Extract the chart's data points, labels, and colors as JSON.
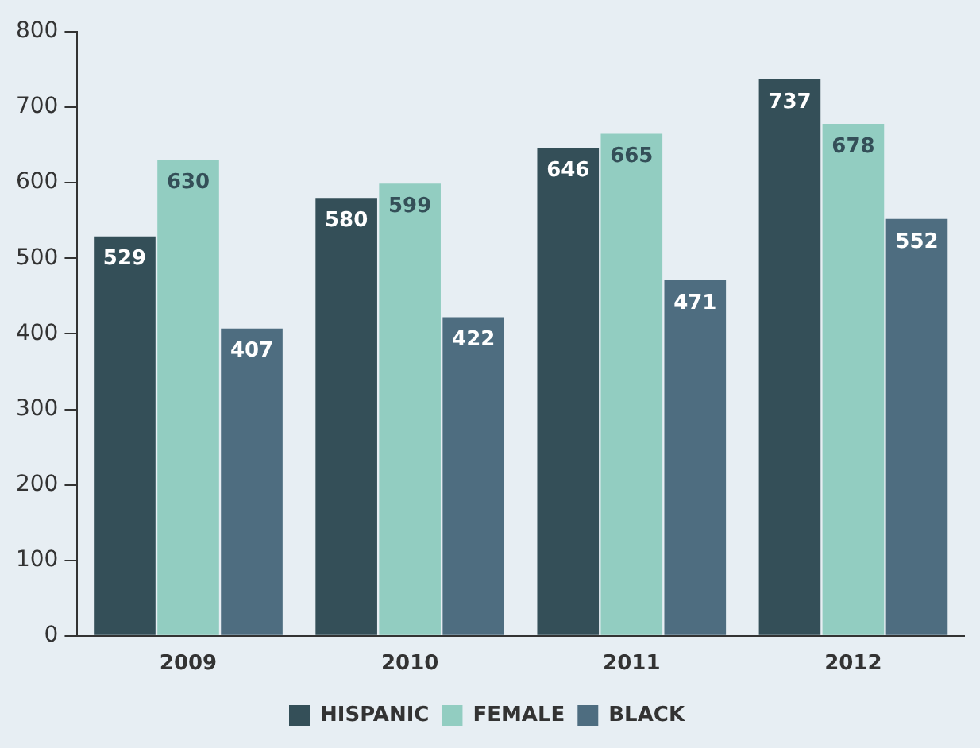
{
  "chart_data": {
    "type": "bar",
    "categories": [
      "2009",
      "2010",
      "2011",
      "2012"
    ],
    "series": [
      {
        "name": "HISPANIC",
        "color": "#344f58",
        "values": [
          529,
          580,
          646,
          737
        ]
      },
      {
        "name": "FEMALE",
        "color": "#92cdc1",
        "values": [
          630,
          599,
          665,
          678
        ]
      },
      {
        "name": "BLACK",
        "color": "#4e6d80",
        "values": [
          407,
          422,
          471,
          552
        ]
      }
    ],
    "ylim": [
      0,
      800
    ],
    "yticks": [
      0,
      100,
      200,
      300,
      400,
      500,
      600,
      700,
      800
    ],
    "grid": false,
    "legend": "bottom",
    "data_labels": true
  }
}
